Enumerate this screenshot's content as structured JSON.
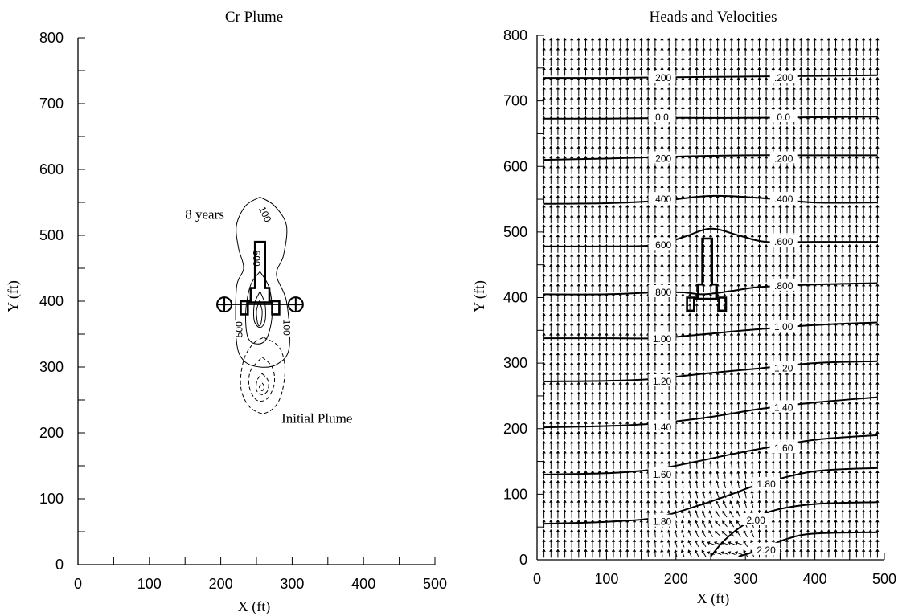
{
  "chart_data": [
    {
      "type": "contour",
      "title": "Cr Plume",
      "xlabel": "X (ft)",
      "ylabel": "Y (ft)",
      "xlim": [
        0,
        500
      ],
      "ylim": [
        0,
        800
      ],
      "xticks": [
        0,
        100,
        200,
        300,
        400,
        500
      ],
      "yticks": [
        0,
        100,
        200,
        300,
        400,
        500,
        600,
        700,
        800
      ],
      "grid": false,
      "annotations": [
        {
          "text": "8 years",
          "x": 150,
          "y": 525
        },
        {
          "text": "Initial Plume",
          "x": 285,
          "y": 215
        }
      ],
      "contours_8_years": [
        {
          "label": "100",
          "points": [
            [
              255,
              558
            ],
            [
              275,
              545
            ],
            [
              292,
              515
            ],
            [
              288,
              470
            ],
            [
              278,
              440
            ],
            [
              292,
              400
            ],
            [
              296,
              330
            ],
            [
              280,
              305
            ],
            [
              255,
              300
            ],
            [
              232,
              310
            ],
            [
              222,
              340
            ],
            [
              222,
              420
            ],
            [
              232,
              450
            ],
            [
              225,
              480
            ],
            [
              222,
              515
            ],
            [
              235,
              545
            ],
            [
              255,
              558
            ]
          ]
        },
        {
          "label": "500",
          "points": [
            [
              255,
              445
            ],
            [
              268,
              420
            ],
            [
              272,
              380
            ],
            [
              265,
              345
            ],
            [
              252,
              335
            ],
            [
              238,
              345
            ],
            [
              235,
              385
            ],
            [
              242,
              425
            ],
            [
              255,
              445
            ]
          ]
        },
        {
          "label": "",
          "points": [
            [
              255,
              415
            ],
            [
              262,
              395
            ],
            [
              262,
              370
            ],
            [
              255,
              360
            ],
            [
              247,
              370
            ],
            [
              247,
              395
            ],
            [
              255,
              415
            ]
          ]
        },
        {
          "label": "",
          "points": [
            [
              254,
              400
            ],
            [
              258,
              385
            ],
            [
              256,
              365
            ],
            [
              252,
              365
            ],
            [
              250,
              385
            ],
            [
              254,
              400
            ]
          ]
        }
      ],
      "contours_initial_plume": [
        {
          "points": [
            [
              260,
              345
            ],
            [
              282,
              330
            ],
            [
              290,
              295
            ],
            [
              282,
              250
            ],
            [
              262,
              230
            ],
            [
              240,
              240
            ],
            [
              228,
              270
            ],
            [
              232,
              310
            ],
            [
              245,
              335
            ],
            [
              260,
              345
            ]
          ]
        },
        {
          "points": [
            [
              258,
              315
            ],
            [
              272,
              300
            ],
            [
              275,
              275
            ],
            [
              265,
              252
            ],
            [
              250,
              250
            ],
            [
              240,
              270
            ],
            [
              242,
              295
            ],
            [
              258,
              315
            ]
          ]
        },
        {
          "points": [
            [
              258,
              290
            ],
            [
              266,
              280
            ],
            [
              266,
              265
            ],
            [
              258,
              258
            ],
            [
              250,
              265
            ],
            [
              251,
              280
            ],
            [
              258,
              290
            ]
          ]
        },
        {
          "points": [
            [
              258,
              276
            ],
            [
              261,
              270
            ],
            [
              258,
              264
            ],
            [
              254,
              270
            ],
            [
              258,
              276
            ]
          ]
        }
      ],
      "wells": [
        {
          "x": 205,
          "y": 395
        },
        {
          "x": 305,
          "y": 395
        }
      ],
      "structure": [
        [
          242,
          400
        ],
        [
          242,
          420
        ],
        [
          248,
          420
        ],
        [
          248,
          490
        ],
        [
          262,
          490
        ],
        [
          262,
          420
        ],
        [
          268,
          420
        ],
        [
          268,
          400
        ],
        [
          282,
          400
        ],
        [
          282,
          380
        ],
        [
          272,
          380
        ],
        [
          272,
          398
        ],
        [
          238,
          398
        ],
        [
          238,
          380
        ],
        [
          228,
          380
        ],
        [
          228,
          400
        ],
        [
          242,
          400
        ]
      ]
    },
    {
      "type": "contour",
      "title": "Heads and Velocities",
      "xlabel": "X (ft)",
      "ylabel": "Y (ft)",
      "xlim": [
        0,
        500
      ],
      "ylim": [
        0,
        800
      ],
      "xticks": [
        0,
        100,
        200,
        300,
        400,
        500
      ],
      "yticks": [
        0,
        100,
        200,
        300,
        400,
        500,
        600,
        700,
        800
      ],
      "grid": false,
      "velocity_field": {
        "x_spacing": 10,
        "y_spacing": 15,
        "dominant_direction": "+y",
        "perturbed_region": "near x=160-310, y=0-180"
      },
      "head_contours": [
        {
          "label": ".200",
          "label_positions": [
            [
              180,
              735
            ],
            [
              355,
              735
            ]
          ],
          "points": [
            [
              10,
              735
            ],
            [
              100,
              735
            ],
            [
              200,
              736
            ],
            [
              300,
              737
            ],
            [
              400,
              738
            ],
            [
              490,
              739
            ]
          ]
        },
        {
          "label": "0.0",
          "label_positions": [
            [
              180,
              675
            ],
            [
              355,
              675
            ]
          ],
          "points": [
            [
              10,
              673
            ],
            [
              100,
              673
            ],
            [
              200,
              674
            ],
            [
              300,
              674
            ],
            [
              400,
              675
            ],
            [
              490,
              676
            ]
          ]
        },
        {
          "label": ".200",
          "label_positions": [
            [
              180,
              612
            ],
            [
              355,
              612
            ]
          ],
          "points": [
            [
              10,
              610
            ],
            [
              100,
              612
            ],
            [
              200,
              615
            ],
            [
              300,
              617
            ],
            [
              400,
              617
            ],
            [
              490,
              617
            ]
          ]
        },
        {
          "label": ".400",
          "label_positions": [
            [
              180,
              550
            ],
            [
              355,
              550
            ]
          ],
          "points": [
            [
              10,
              543
            ],
            [
              100,
              544
            ],
            [
              180,
              548
            ],
            [
              250,
              555
            ],
            [
              320,
              552
            ],
            [
              400,
              545
            ],
            [
              490,
              545
            ]
          ]
        },
        {
          "label": ".600",
          "label_positions": [
            [
              180,
              480
            ],
            [
              355,
              485
            ]
          ],
          "points": [
            [
              10,
              478
            ],
            [
              100,
              478
            ],
            [
              170,
              480
            ],
            [
              210,
              492
            ],
            [
              250,
              505
            ],
            [
              290,
              495
            ],
            [
              330,
              485
            ],
            [
              400,
              485
            ],
            [
              490,
              485
            ]
          ]
        },
        {
          "label": ".800",
          "label_positions": [
            [
              180,
              408
            ],
            [
              355,
              418
            ]
          ],
          "points": [
            [
              10,
              405
            ],
            [
              100,
              405
            ],
            [
              170,
              408
            ],
            [
              210,
              408
            ],
            [
              240,
              405
            ],
            [
              280,
              410
            ],
            [
              320,
              416
            ],
            [
              400,
              420
            ],
            [
              490,
              422
            ]
          ]
        },
        {
          "label": "1.00",
          "label_positions": [
            [
              180,
              337
            ],
            [
              355,
              355
            ]
          ],
          "points": [
            [
              10,
              338
            ],
            [
              100,
              338
            ],
            [
              170,
              338
            ],
            [
              230,
              343
            ],
            [
              300,
              350
            ],
            [
              400,
              358
            ],
            [
              490,
              362
            ]
          ]
        },
        {
          "label": "1.20",
          "label_positions": [
            [
              180,
              272
            ],
            [
              355,
              292
            ]
          ],
          "points": [
            [
              10,
              272
            ],
            [
              100,
              273
            ],
            [
              170,
              276
            ],
            [
              250,
              285
            ],
            [
              320,
              292
            ],
            [
              400,
              300
            ],
            [
              490,
              303
            ]
          ]
        },
        {
          "label": "1.40",
          "label_positions": [
            [
              180,
              202
            ],
            [
              355,
              232
            ]
          ],
          "points": [
            [
              10,
              202
            ],
            [
              100,
              204
            ],
            [
              170,
              208
            ],
            [
              250,
              218
            ],
            [
              320,
              230
            ],
            [
              400,
              240
            ],
            [
              490,
              248
            ]
          ]
        },
        {
          "label": "1.60",
          "label_positions": [
            [
              180,
              130
            ],
            [
              355,
              170
            ]
          ],
          "points": [
            [
              10,
              130
            ],
            [
              100,
              132
            ],
            [
              170,
              138
            ],
            [
              230,
              150
            ],
            [
              300,
              165
            ],
            [
              400,
              183
            ],
            [
              490,
              190
            ]
          ]
        },
        {
          "label": "1.80",
          "label_positions": [
            [
              180,
              58
            ],
            [
              330,
              115
            ]
          ],
          "points": [
            [
              10,
              55
            ],
            [
              100,
              58
            ],
            [
              170,
              64
            ],
            [
              230,
              82
            ],
            [
              280,
              100
            ],
            [
              320,
              115
            ],
            [
              400,
              135
            ],
            [
              490,
              140
            ]
          ]
        },
        {
          "label": "2.00",
          "label_positions": [
            [
              315,
              60
            ]
          ],
          "points": [
            [
              250,
              5
            ],
            [
              270,
              30
            ],
            [
              300,
              55
            ],
            [
              340,
              75
            ],
            [
              400,
              85
            ],
            [
              490,
              88
            ]
          ]
        },
        {
          "label": "2.20",
          "label_positions": [
            [
              330,
              15
            ]
          ],
          "points": [
            [
              290,
              5
            ],
            [
              320,
              15
            ],
            [
              360,
              32
            ],
            [
              400,
              40
            ],
            [
              490,
              42
            ]
          ]
        }
      ],
      "structure": [
        [
          232,
          400
        ],
        [
          232,
          420
        ],
        [
          238,
          420
        ],
        [
          238,
          490
        ],
        [
          252,
          490
        ],
        [
          252,
          420
        ],
        [
          258,
          420
        ],
        [
          258,
          400
        ],
        [
          272,
          400
        ],
        [
          272,
          380
        ],
        [
          262,
          380
        ],
        [
          262,
          398
        ],
        [
          226,
          398
        ],
        [
          226,
          380
        ],
        [
          216,
          380
        ],
        [
          216,
          400
        ],
        [
          232,
          400
        ]
      ]
    }
  ]
}
